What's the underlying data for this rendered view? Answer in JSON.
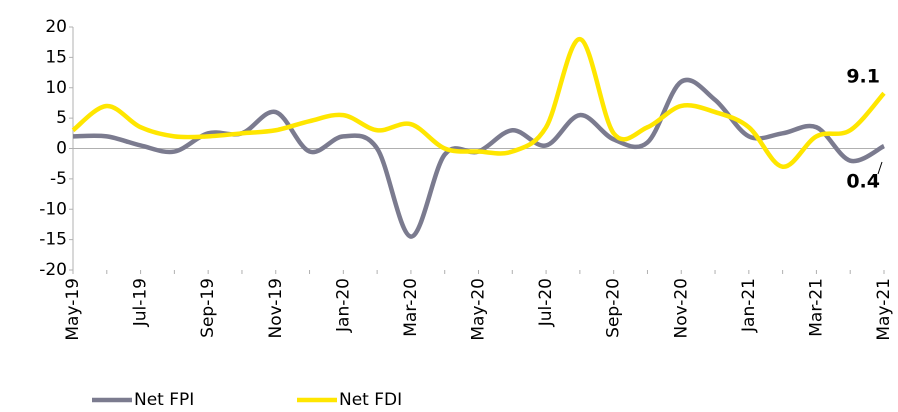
{
  "chart_data": {
    "type": "line",
    "categories": [
      "May-19",
      null,
      "Jul-19",
      null,
      "Sep-19",
      null,
      "Nov-19",
      null,
      "Jan-20",
      null,
      "Mar-20",
      null,
      "May-20",
      null,
      "Jul-20",
      null,
      "Sep-20",
      null,
      "Nov-20",
      null,
      "Jan-21",
      null,
      "Mar-21",
      null,
      "May-21"
    ],
    "series": [
      {
        "name": "Net FPI",
        "color": "#7b7b8f",
        "values": [
          2,
          2,
          0.5,
          -0.5,
          2.5,
          2.5,
          6,
          -0.5,
          2,
          0,
          -14.5,
          -1,
          -0.5,
          3,
          0.5,
          5.5,
          1.5,
          1,
          11,
          8,
          2,
          2.5,
          3.5,
          -2,
          0.4
        ]
      },
      {
        "name": "Net FDI",
        "color": "#ffe600",
        "values": [
          3,
          7,
          3.5,
          2,
          2,
          2.5,
          3,
          4.5,
          5.5,
          3,
          4,
          0,
          -0.5,
          -0.5,
          3.5,
          18,
          2.5,
          3.5,
          7,
          6,
          3.5,
          -3,
          2,
          3,
          9.1
        ]
      }
    ],
    "ylim": [
      -20,
      20
    ],
    "yticks": [
      -20,
      -15,
      -10,
      -5,
      0,
      5,
      10,
      15,
      20
    ],
    "grid": false
  }
}
